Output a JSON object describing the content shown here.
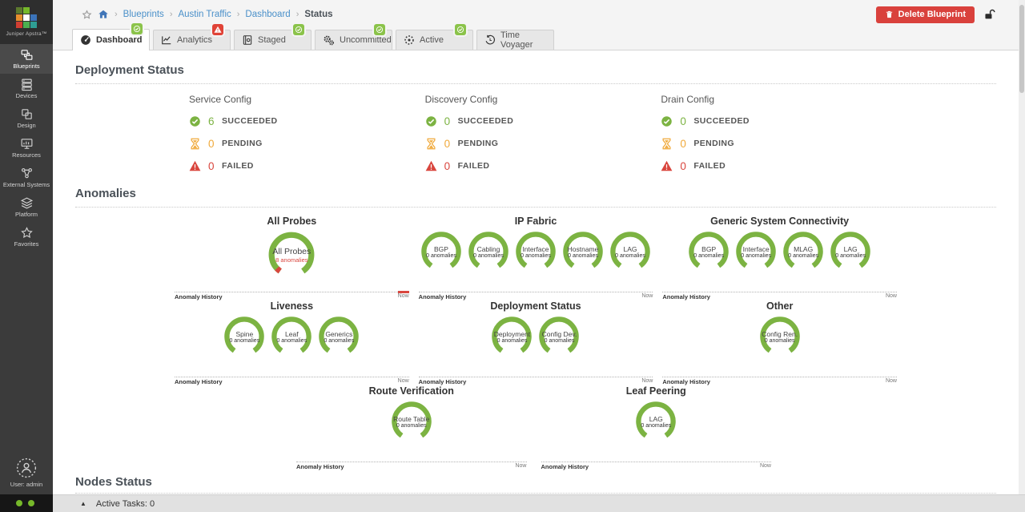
{
  "colors": {
    "green": "#7cb342",
    "red": "#d9463e",
    "orange": "#f0a93a",
    "badge_green": "#8bc34a",
    "badge_red": "#e04337",
    "link_blue": "#4a90c9"
  },
  "sidebar": {
    "logo_label": "Juniper Apstra™",
    "logo_squares": [
      "#5d7a2e",
      "#76b82a",
      "transparent",
      "#e78f2e",
      "#ffffff",
      "#3b73b9",
      "#cf3e32",
      "#4caf50",
      "#2e9e94"
    ],
    "items": [
      {
        "label": "Blueprints",
        "icon": "blueprints-icon",
        "active": true
      },
      {
        "label": "Devices",
        "icon": "devices-icon",
        "active": false
      },
      {
        "label": "Design",
        "icon": "design-icon",
        "active": false
      },
      {
        "label": "Resources",
        "icon": "resources-icon",
        "active": false
      },
      {
        "label": "External Systems",
        "icon": "external-systems-icon",
        "active": false
      },
      {
        "label": "Platform",
        "icon": "platform-icon",
        "active": false
      },
      {
        "label": "Favorites",
        "icon": "favorites-icon",
        "active": false
      }
    ],
    "user_label": "User: admin"
  },
  "topbar": {
    "breadcrumb": [
      {
        "label": "Blueprints",
        "link": true
      },
      {
        "label": "Austin Traffic",
        "link": true
      },
      {
        "label": "Dashboard",
        "link": true
      },
      {
        "label": "Status",
        "link": false
      }
    ],
    "delete_button_label": "Delete Blueprint"
  },
  "tabs": [
    {
      "label": "Dashboard",
      "icon": "dashboard-icon",
      "badge": "success",
      "active": true
    },
    {
      "label": "Analytics",
      "icon": "analytics-icon",
      "badge": "error",
      "active": false
    },
    {
      "label": "Staged",
      "icon": "staged-icon",
      "badge": "success",
      "active": false
    },
    {
      "label": "Uncommitted",
      "icon": "uncommitted-icon",
      "badge": "success",
      "active": false
    },
    {
      "label": "Active",
      "icon": "active-icon",
      "badge": "success",
      "active": false
    },
    {
      "label": "Time Voyager",
      "icon": "time-voyager-icon",
      "badge": null,
      "active": false
    }
  ],
  "deployment_status": {
    "title": "Deployment Status",
    "row_labels": {
      "succeeded": "SUCCEEDED",
      "pending": "PENDING",
      "failed": "FAILED"
    },
    "columns": [
      {
        "name": "Service Config",
        "succeeded": 6,
        "pending": 0,
        "failed": 0
      },
      {
        "name": "Discovery Config",
        "succeeded": 0,
        "pending": 0,
        "failed": 0
      },
      {
        "name": "Drain Config",
        "succeeded": 0,
        "pending": 0,
        "failed": 0
      }
    ]
  },
  "anomalies": {
    "title": "Anomalies",
    "history_label": "Anomaly History",
    "now_label": "Now",
    "count_suffix": "anomalies",
    "rows": [
      [
        {
          "title": "All Probes",
          "large": true,
          "history_alert": true,
          "gauges": [
            {
              "name": "All Probes",
              "count": 8,
              "alert": true
            }
          ]
        },
        {
          "title": "IP Fabric",
          "gauges": [
            {
              "name": "BGP",
              "count": 0
            },
            {
              "name": "Cabling",
              "count": 0
            },
            {
              "name": "Interface",
              "count": 0
            },
            {
              "name": "Hostname",
              "count": 0
            },
            {
              "name": "LAG",
              "count": 0
            }
          ]
        },
        {
          "title": "Generic System Connectivity",
          "gauges": [
            {
              "name": "BGP",
              "count": 0
            },
            {
              "name": "Interface",
              "count": 0
            },
            {
              "name": "MLAG",
              "count": 0
            },
            {
              "name": "LAG",
              "count": 0
            }
          ]
        }
      ],
      [
        {
          "title": "Liveness",
          "gauges": [
            {
              "name": "Spine",
              "count": 0
            },
            {
              "name": "Leaf",
              "count": 0
            },
            {
              "name": "Generics",
              "count": 0
            }
          ]
        },
        {
          "title": "Deployment Status",
          "gauges": [
            {
              "name": "Deployment",
              "count": 0
            },
            {
              "name": "Config Dev.",
              "count": 0
            }
          ]
        },
        {
          "title": "Other",
          "gauges": [
            {
              "name": "Config Ren.",
              "count": 0
            }
          ]
        }
      ],
      [
        {
          "title": "Route Verification",
          "gauges": [
            {
              "name": "Route Table",
              "count": 0
            }
          ]
        },
        {
          "title": "Leaf Peering",
          "gauges": [
            {
              "name": "LAG",
              "count": 0
            }
          ]
        }
      ]
    ]
  },
  "nodes_status": {
    "title": "Nodes Status"
  },
  "footer": {
    "active_tasks_label": "Active Tasks: 0"
  }
}
